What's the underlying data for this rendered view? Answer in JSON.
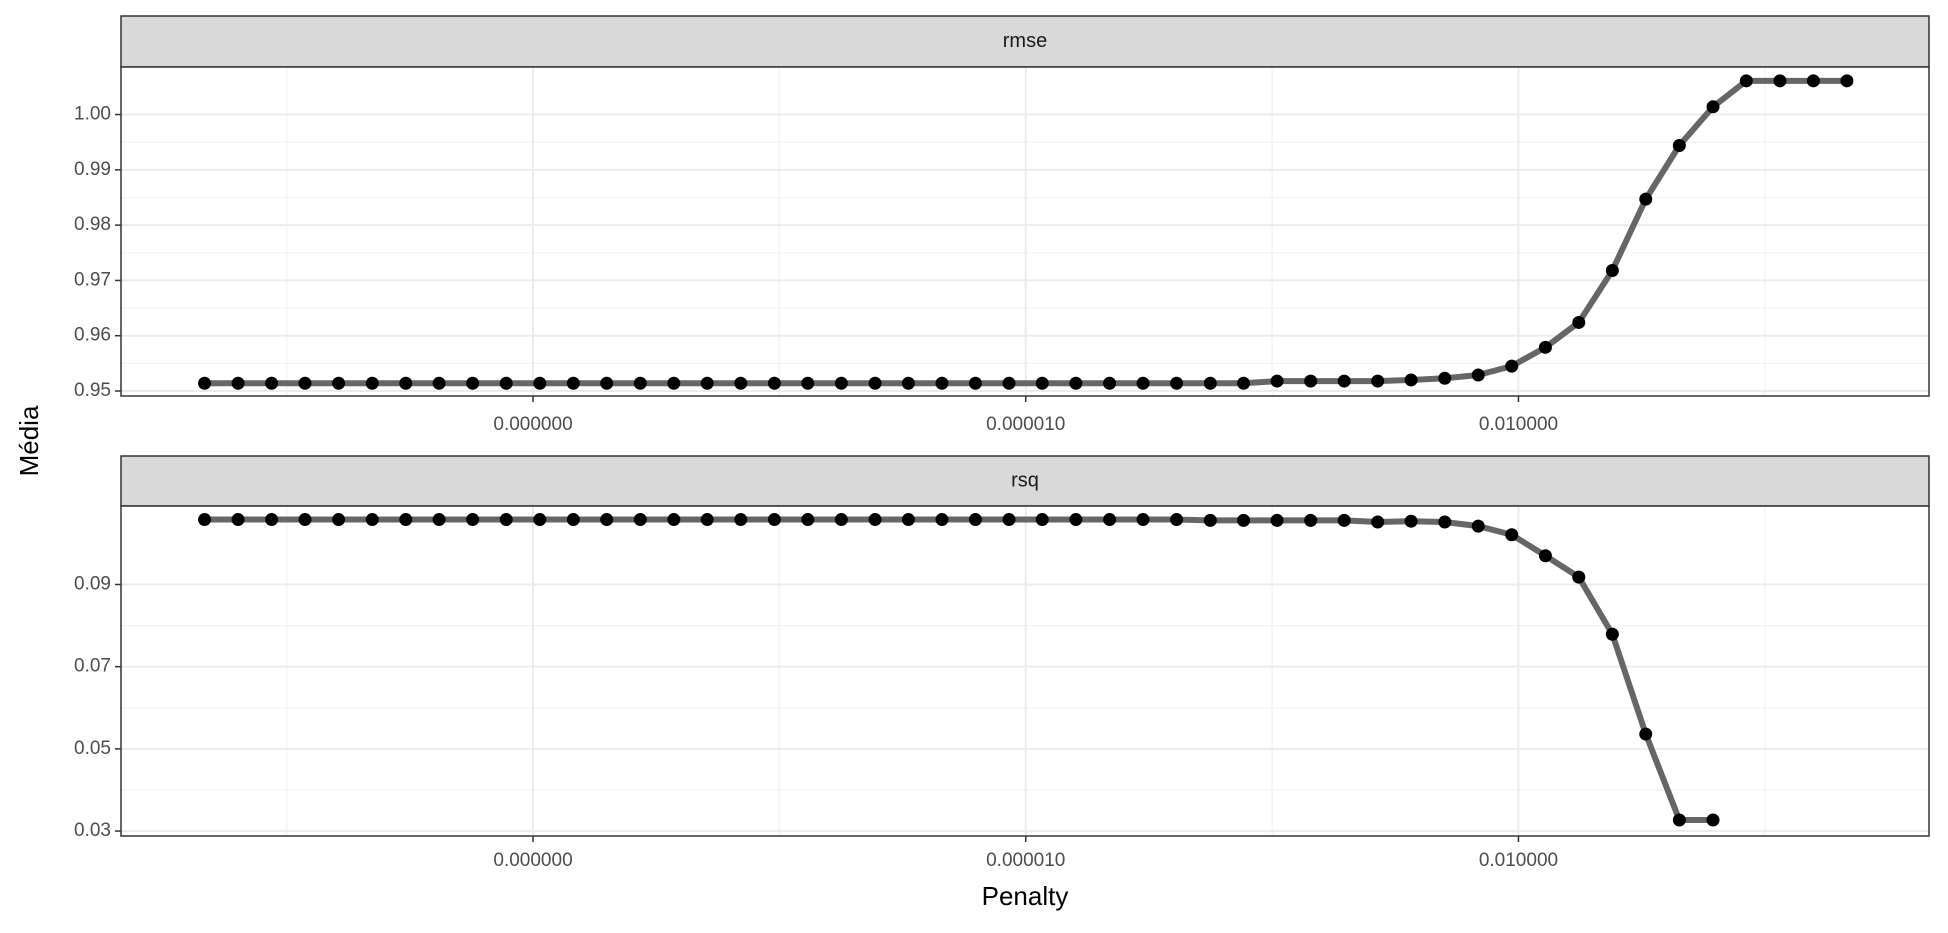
{
  "chart_data": {
    "type": "line",
    "xlabel": "Penalty",
    "ylabel": "Média",
    "xscale": "log",
    "xlim": [
      3.1e-11,
      3.16
    ],
    "xticks": [
      {
        "value": 1e-08,
        "label": "0.000000"
      },
      {
        "value": 1e-05,
        "label": "0.000010"
      },
      {
        "value": 0.01,
        "label": "0.010000"
      }
    ],
    "grid": true,
    "color": "#666666",
    "point_color": "#000000",
    "x": [
      1e-10,
      1.6e-10,
      2.56e-10,
      4.09e-10,
      6.55e-10,
      1.05e-09,
      1.68e-09,
      2.68e-09,
      4.29e-09,
      6.87e-09,
      1.1e-08,
      1.76e-08,
      2.81e-08,
      4.5e-08,
      7.2e-08,
      1.15e-07,
      1.84e-07,
      2.95e-07,
      4.71e-07,
      7.54e-07,
      1.21e-06,
      1.93e-06,
      3.09e-06,
      4.94e-06,
      7.91e-06,
      1.26e-05,
      2.02e-05,
      3.24e-05,
      5.18e-05,
      8.29e-05,
      0.000133,
      0.000212,
      0.000339,
      0.000543,
      0.000869,
      0.00139,
      0.00222,
      0.00356,
      0.00569,
      0.0091,
      0.0146,
      0.0233,
      0.0373,
      0.0596,
      0.0954,
      0.153,
      0.244,
      0.391,
      0.625,
      1
    ],
    "series": [
      {
        "name": "rmse",
        "ylim": [
          0.9491,
          1.0086
        ],
        "yticks": [
          0.95,
          0.96,
          0.97,
          0.98,
          0.99,
          {
            "value": 1,
            "label": "1.00"
          }
        ],
        "values": [
          0.9514,
          0.9514,
          0.9514,
          0.9514,
          0.9514,
          0.9514,
          0.9514,
          0.9514,
          0.9514,
          0.9514,
          0.9514,
          0.9514,
          0.9514,
          0.9514,
          0.9514,
          0.9514,
          0.9514,
          0.9514,
          0.9514,
          0.9514,
          0.9514,
          0.9514,
          0.9514,
          0.9514,
          0.9514,
          0.9514,
          0.9514,
          0.9514,
          0.9514,
          0.9514,
          0.9514,
          0.9514,
          0.9518,
          0.9518,
          0.9518,
          0.9518,
          0.952,
          0.9523,
          0.9529,
          0.9545,
          0.9579,
          0.9624,
          0.9718,
          0.9847,
          0.9944,
          1.0014,
          1.0061,
          1.0061,
          1.0061,
          1.0061
        ]
      },
      {
        "name": "rsq",
        "ylim": [
          0.0288,
          0.1091
        ],
        "yticks": [
          0.03,
          0.05,
          0.07,
          0.09
        ],
        "values": [
          0.1058,
          0.1058,
          0.1058,
          0.1058,
          0.1058,
          0.1058,
          0.1058,
          0.1058,
          0.1058,
          0.1058,
          0.1058,
          0.1058,
          0.1058,
          0.1058,
          0.1058,
          0.1058,
          0.1058,
          0.1058,
          0.1058,
          0.1058,
          0.1058,
          0.1058,
          0.1058,
          0.1058,
          0.1058,
          0.1058,
          0.1058,
          0.1058,
          0.1058,
          0.1058,
          0.1056,
          0.1056,
          0.1056,
          0.1056,
          0.1056,
          0.1052,
          0.1054,
          0.1052,
          0.1042,
          0.1021,
          0.097,
          0.0918,
          0.0779,
          0.0536,
          0.0327,
          0.0327,
          null,
          null,
          null,
          null
        ]
      }
    ]
  }
}
